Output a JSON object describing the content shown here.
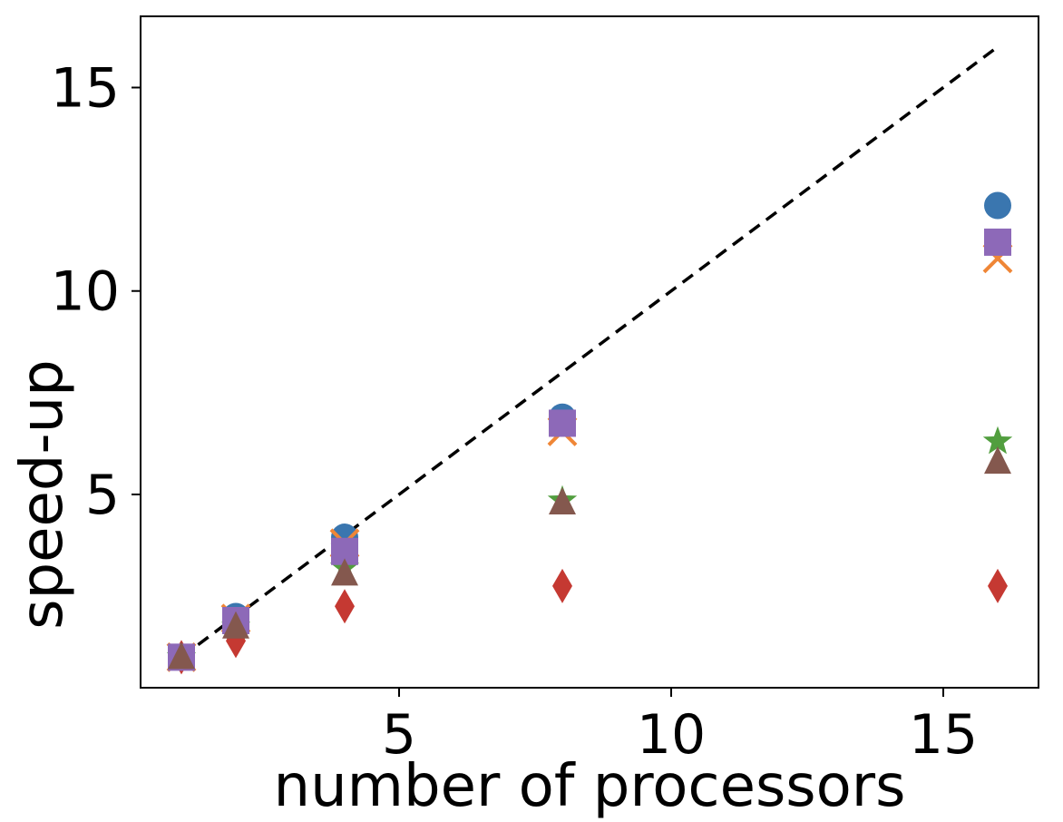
{
  "chart_data": {
    "type": "scatter",
    "title": "",
    "xlabel": "number of processors",
    "ylabel": "speed-up",
    "xlim": [
      0.25,
      16.75
    ],
    "ylim": [
      0.25,
      16.75
    ],
    "xticks": [
      5,
      10,
      15
    ],
    "yticks": [
      5,
      10,
      15
    ],
    "x": [
      1,
      2,
      4,
      8,
      16
    ],
    "ideal_line": {
      "x": [
        1,
        16
      ],
      "y": [
        1,
        16
      ],
      "style": "dashed",
      "color": "#000000"
    },
    "series": [
      {
        "marker": "circle",
        "color": "#3a76af",
        "values": [
          1.0,
          2.0,
          3.95,
          6.9,
          12.1
        ]
      },
      {
        "marker": "x",
        "color": "#ef8636",
        "values": [
          1.0,
          1.95,
          3.8,
          6.55,
          10.8
        ]
      },
      {
        "marker": "star",
        "color": "#519e3e",
        "values": [
          1.0,
          1.75,
          3.2,
          4.85,
          6.3
        ]
      },
      {
        "marker": "diamond",
        "color": "#c53932",
        "values": [
          1.0,
          1.4,
          2.25,
          2.75,
          2.75
        ]
      },
      {
        "marker": "square",
        "color": "#8d69b8",
        "values": [
          1.0,
          1.9,
          3.6,
          6.75,
          11.2
        ]
      },
      {
        "marker": "triangle",
        "color": "#84584e",
        "values": [
          1.0,
          1.75,
          3.05,
          4.8,
          5.8
        ]
      }
    ],
    "grid": false,
    "legend": "none"
  }
}
